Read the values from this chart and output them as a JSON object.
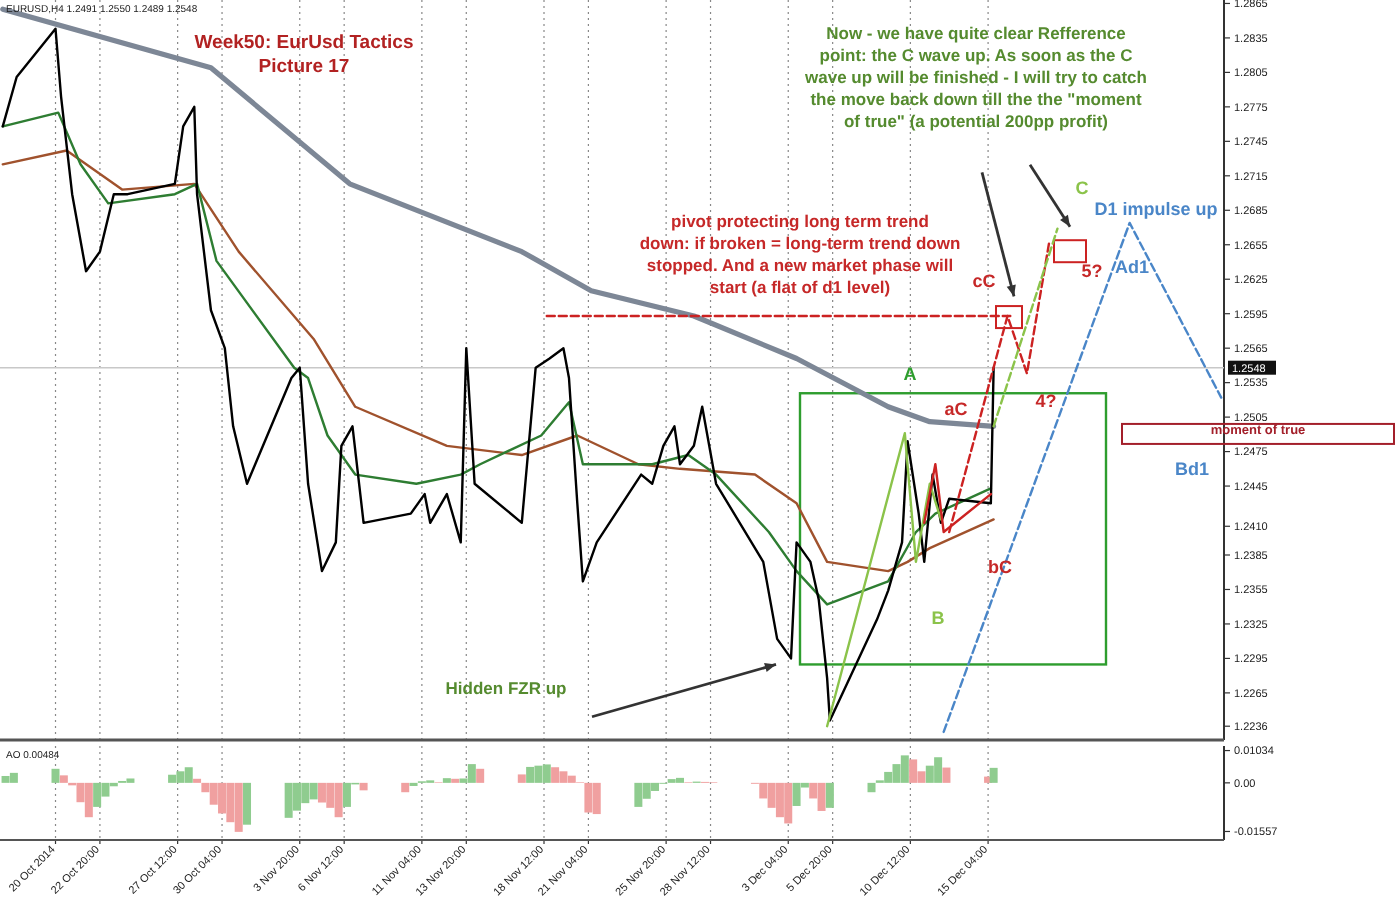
{
  "chart_data": [
    {
      "type": "line",
      "title": "Week50: EurUsd Tactics\nPicture 17",
      "subtitle": "EURUSD,H4  1.2491 1.2550 1.2489 1.2548",
      "xlim": [
        "2014-10-16T20:00",
        "2014-12-29T08:00"
      ],
      "ylim": [
        1.2224,
        1.2868
      ],
      "xticks": [
        {
          "value": "2014-10-20T04:00",
          "label": null
        },
        {
          "value": "2014-10-22T20:00",
          "label": null
        },
        {
          "value": "2014-10-27T12:00",
          "label": null
        },
        {
          "value": "2014-10-30T04:00",
          "label": null
        },
        {
          "value": "2014-11-03T20:00",
          "label": null
        },
        {
          "value": "2014-11-06T12:00",
          "label": null
        },
        {
          "value": "2014-11-11T04:00",
          "label": null
        },
        {
          "value": "2014-11-13T20:00",
          "label": null
        },
        {
          "value": "2014-11-18T12:00",
          "label": null
        },
        {
          "value": "2014-11-21T04:00",
          "label": null
        },
        {
          "value": "2014-11-25T20:00",
          "label": null
        },
        {
          "value": "2014-11-28T12:00",
          "label": null
        },
        {
          "value": "2014-12-03T04:00",
          "label": null
        },
        {
          "value": "2014-12-05T20:00",
          "label": null
        },
        {
          "value": "2014-12-10T12:00",
          "label": null
        },
        {
          "value": "2014-12-15T04:00",
          "label": null
        }
      ],
      "yticks": [
        1.2865,
        1.2835,
        1.2805,
        1.2775,
        1.2745,
        1.2715,
        1.2685,
        1.2655,
        1.2625,
        1.2595,
        1.2565,
        1.2535,
        1.2505,
        1.2475,
        1.2445,
        {
          "value": 1.241,
          "label": "1.2410"
        },
        1.2385,
        1.2355,
        1.2325,
        1.2295,
        1.2265,
        1.2236
      ],
      "tick_labels": "y",
      "grid": "x",
      "series": [
        {
          "color": "#7d8796",
          "x": [
            "2014-10-17T00:00",
            "2014-10-29T12:00",
            "2014-11-06T20:00",
            "2014-11-17T04:00",
            "2014-11-21T08:00",
            "2014-11-27T12:00",
            "2014-12-03T16:00",
            "2014-12-09T04:00",
            "2014-12-11T16:00",
            "2014-12-15T12:00"
          ],
          "values": [
            1.286,
            1.2809,
            1.2708,
            1.2649,
            1.2615,
            1.2593,
            1.2556,
            1.2514,
            1.2501,
            1.2497
          ]
        },
        {
          "color": "#a0522d",
          "x": [
            "2014-10-17T00:00",
            "2014-10-20T20:00",
            "2014-10-24T04:00",
            "2014-10-28T12:00",
            "2014-10-31T04:00",
            "2014-11-04T16:00",
            "2014-11-07T04:00",
            "2014-11-12T16:00",
            "2014-11-17T04:00",
            "2014-11-20T12:00",
            "2014-11-24T04:00",
            "2014-11-26T16:00",
            "2014-12-01T04:00",
            "2014-12-03T16:00",
            "2014-12-05T12:00",
            "2014-12-09T04:00",
            "2014-12-10T08:00",
            "2014-12-11T16:00",
            "2014-12-15T12:00"
          ],
          "values": [
            1.2725,
            1.2737,
            1.2703,
            1.2708,
            1.2649,
            1.2573,
            1.2514,
            1.248,
            1.2472,
            1.2489,
            1.2464,
            1.246,
            1.2455,
            1.243,
            1.2379,
            1.2371,
            1.2379,
            1.2391,
            1.2416
          ]
        },
        {
          "color": "#2e7d32",
          "x": [
            "2014-10-17T00:00",
            "2014-10-20T08:00",
            "2014-10-21T16:00",
            "2014-10-23T08:00",
            "2014-10-27T08:00",
            "2014-10-28T16:00",
            "2014-10-29T20:00",
            "2014-11-03T12:00",
            "2014-11-04T08:00",
            "2014-11-05T12:00",
            "2014-11-07T04:00",
            "2014-11-10T20:00",
            "2014-11-13T12:00",
            "2014-11-14T16:00",
            "2014-11-18T08:00",
            "2014-11-20T00:00",
            "2014-11-20T20:00",
            "2014-11-25T00:00",
            "2014-11-27T04:00",
            "2014-11-28T20:00",
            "2014-12-02T00:00",
            "2014-12-03T16:00",
            "2014-12-05T12:00",
            "2014-12-09T04:00",
            "2014-12-10T20:00",
            "2014-12-12T00:00",
            "2014-12-15T08:00"
          ],
          "values": [
            1.2758,
            1.277,
            1.2725,
            1.2691,
            1.2699,
            1.2708,
            1.2641,
            1.2548,
            1.2539,
            1.2489,
            1.2455,
            1.2447,
            1.2455,
            1.2464,
            1.2489,
            1.2518,
            1.2464,
            1.2464,
            1.2472,
            1.2455,
            1.2405,
            1.2371,
            1.2342,
            1.2362,
            1.2405,
            1.2421,
            1.2443
          ]
        },
        {
          "color": "#000000",
          "x": [
            "2014-10-17T00:00",
            "2014-10-17T20:00",
            "2014-10-20T04:00",
            "2014-10-20T12:00",
            "2014-10-21T04:00",
            "2014-10-22T00:00",
            "2014-10-22T20:00",
            "2014-10-23T16:00",
            "2014-10-24T12:00",
            "2014-10-27T08:00",
            "2014-10-27T20:00",
            "2014-10-28T12:00",
            "2014-10-28T16:00",
            "2014-10-29T12:00",
            "2014-10-30T08:00",
            "2014-10-30T20:00",
            "2014-10-31T16:00",
            "2014-11-03T08:00",
            "2014-11-03T20:00",
            "2014-11-04T08:00",
            "2014-11-05T04:00",
            "2014-11-06T00:00",
            "2014-11-06T08:00",
            "2014-11-07T00:00",
            "2014-11-07T16:00",
            "2014-11-10T12:00",
            "2014-11-11T08:00",
            "2014-11-11T16:00",
            "2014-11-12T16:00",
            "2014-11-13T12:00",
            "2014-11-13T20:00",
            "2014-11-14T08:00",
            "2014-11-17T04:00",
            "2014-11-18T00:00",
            "2014-11-18T20:00",
            "2014-11-19T16:00",
            "2014-11-20T00:00",
            "2014-11-20T12:00",
            "2014-11-20T20:00",
            "2014-11-21T16:00",
            "2014-11-24T08:00",
            "2014-11-25T00:00",
            "2014-11-25T16:00",
            "2014-11-26T08:00",
            "2014-11-26T16:00",
            "2014-11-27T12:00",
            "2014-11-28T00:00",
            "2014-11-28T20:00",
            "2014-12-01T16:00",
            "2014-12-02T12:00",
            "2014-12-03T08:00",
            "2014-12-03T16:00",
            "2014-12-04T12:00",
            "2014-12-05T00:00",
            "2014-12-05T12:00",
            "2014-12-05T16:00",
            "2014-12-08T12:00",
            "2014-12-09T04:00",
            "2014-12-10T00:00",
            "2014-12-10T08:00",
            "2014-12-11T00:00",
            "2014-12-11T08:00",
            "2014-12-11T20:00",
            "2014-12-12T08:00",
            "2014-12-12T20:00",
            "2014-12-15T08:00",
            "2014-12-15T12:00"
          ],
          "values": [
            1.2758,
            1.2801,
            1.2843,
            1.2784,
            1.2699,
            1.2632,
            1.2649,
            1.2699,
            1.2699,
            1.2708,
            1.2758,
            1.2775,
            1.2699,
            1.2598,
            1.2565,
            1.2497,
            1.2447,
            1.2539,
            1.2548,
            1.2447,
            1.2371,
            1.2396,
            1.248,
            1.2497,
            1.2413,
            1.2421,
            1.2438,
            1.2413,
            1.2438,
            1.2396,
            1.2565,
            1.2447,
            1.2413,
            1.2548,
            1.2556,
            1.2565,
            1.2539,
            1.243,
            1.2362,
            1.2396,
            1.2455,
            1.2447,
            1.248,
            1.2497,
            1.2464,
            1.248,
            1.2514,
            1.2447,
            1.2379,
            1.2312,
            1.2295,
            1.2396,
            1.2379,
            1.2346,
            1.2278,
            1.2241,
            1.2329,
            1.2354,
            1.2396,
            1.2484,
            1.2421,
            1.2379,
            1.2455,
            1.2413,
            1.2434,
            1.243,
            1.2548
          ]
        },
        {
          "color": "#8bc34a",
          "line_style": "solid",
          "x": [
            "2014-12-05T12:00",
            "2014-12-10T04:00",
            "2014-12-10T20:00",
            "2014-12-11T16:00",
            "2014-12-12T08:00"
          ],
          "values": [
            1.2236,
            1.2491,
            1.2379,
            1.2447,
            1.2416
          ]
        },
        {
          "color": "#cc2222",
          "line_style": "solid",
          "x": [
            "2014-12-11T08:00",
            "2014-12-12T00:00",
            "2014-12-12T12:00",
            "2014-12-15T08:00"
          ],
          "values": [
            1.2413,
            1.2464,
            1.2405,
            1.2438
          ]
        },
        {
          "color": "#cc2222",
          "line_style": "dashed",
          "x": [
            "2014-11-18T16:00",
            "2014-12-16T12:00"
          ],
          "values": [
            1.2593,
            1.2593
          ]
        },
        {
          "color": "#cc2222",
          "line_style": "dashed",
          "x": [
            "2014-12-12T20:00",
            "2014-12-16T08:00",
            "2014-12-17T12:00",
            "2014-12-18T20:00"
          ],
          "values": [
            1.2405,
            1.2593,
            1.2543,
            1.2657
          ]
        },
        {
          "color": "#8bc34a",
          "line_style": "dashed",
          "x": [
            "2014-12-15T12:00",
            "2014-12-19T08:00"
          ],
          "values": [
            1.2497,
            1.2669
          ]
        },
        {
          "color": "#4a86c8",
          "line_style": "dashed",
          "x": [
            "2014-12-12T12:00",
            "2014-12-23T16:00",
            "2014-12-29T04:00"
          ],
          "values": [
            1.2231,
            1.2674,
            1.2522
          ]
        }
      ],
      "ref_lines": [
        {
          "axis": "y",
          "value": 1.2548,
          "label": "1.2548",
          "color": "#c8c8c8"
        }
      ],
      "annotations": [
        "pivot protecting long term trend\ndown: if broken = long-term trend down\nstopped. And a new market phase will\nstart (a flat of d1 level)",
        "Now - we have quite clear Refference\npoint: the C wave up. As soon as the C\nwave up will be finished - I will try to catch\nthe move back down till the the \"moment\nof true\" (a potential 200pp profit)",
        "Hidden FZR up",
        "moment of true",
        "A",
        "B",
        "C",
        "aC",
        "bC",
        "cC",
        "4?",
        "5?",
        "D1 impulse up",
        "Ad1",
        "Bd1"
      ]
    },
    {
      "type": "bar",
      "title": "AO 0.00484",
      "xlim": [
        "2014-10-16T20:00",
        "2014-12-29T08:00"
      ],
      "ylim": [
        -0.0183,
        0.0118
      ],
      "xticks": [
        {
          "value": "2014-10-20T04:00",
          "label": "20 Oct 2014"
        },
        {
          "value": "2014-10-22T20:00",
          "label": "22 Oct 20:00"
        },
        {
          "value": "2014-10-27T12:00",
          "label": "27 Oct 12:00"
        },
        {
          "value": "2014-10-30T04:00",
          "label": "30 Oct 04:00"
        },
        {
          "value": "2014-11-03T20:00",
          "label": "3 Nov 20:00"
        },
        {
          "value": "2014-11-06T12:00",
          "label": "6 Nov 12:00"
        },
        {
          "value": "2014-11-11T04:00",
          "label": "11 Nov 04:00"
        },
        {
          "value": "2014-11-13T20:00",
          "label": "13 Nov 20:00"
        },
        {
          "value": "2014-11-18T12:00",
          "label": "18 Nov 12:00"
        },
        {
          "value": "2014-11-21T04:00",
          "label": "21 Nov 04:00"
        },
        {
          "value": "2014-11-25T20:00",
          "label": "25 Nov 20:00"
        },
        {
          "value": "2014-11-28T12:00",
          "label": "28 Nov 12:00"
        },
        {
          "value": "2014-12-03T04:00",
          "label": "3 Dec 04:00"
        },
        {
          "value": "2014-12-05T20:00",
          "label": "5 Dec 20:00"
        },
        {
          "value": "2014-12-10T12:00",
          "label": "10 Dec 12:00"
        },
        {
          "value": "2014-12-15T04:00",
          "label": "15 Dec 04:00"
        }
      ],
      "yticks": [
        0.01034,
        {
          "value": 0,
          "label": "0.00"
        },
        -0.01557
      ],
      "grid": "x",
      "x": [
        "2014-10-17T04:00",
        "2014-10-17T16:00",
        "2014-10-20T04:00",
        "2014-10-20T16:00",
        "2014-10-21T04:00",
        "2014-10-21T16:00",
        "2014-10-22T04:00",
        "2014-10-22T16:00",
        "2014-10-23T04:00",
        "2014-10-23T16:00",
        "2014-10-24T04:00",
        "2014-10-24T16:00",
        "2014-10-27T04:00",
        "2014-10-27T16:00",
        "2014-10-28T04:00",
        "2014-10-28T16:00",
        "2014-10-29T04:00",
        "2014-10-29T16:00",
        "2014-10-30T04:00",
        "2014-10-30T16:00",
        "2014-10-31T04:00",
        "2014-10-31T16:00",
        "2014-11-03T04:00",
        "2014-11-03T16:00",
        "2014-11-04T04:00",
        "2014-11-04T16:00",
        "2014-11-05T04:00",
        "2014-11-05T16:00",
        "2014-11-06T04:00",
        "2014-11-06T16:00",
        "2014-11-07T04:00",
        "2014-11-07T16:00",
        "2014-11-10T04:00",
        "2014-11-10T16:00",
        "2014-11-11T04:00",
        "2014-11-11T16:00",
        "2014-11-12T04:00",
        "2014-11-12T16:00",
        "2014-11-13T04:00",
        "2014-11-13T16:00",
        "2014-11-14T04:00",
        "2014-11-14T16:00",
        "2014-11-17T04:00",
        "2014-11-17T16:00",
        "2014-11-18T04:00",
        "2014-11-18T16:00",
        "2014-11-19T04:00",
        "2014-11-19T16:00",
        "2014-11-20T04:00",
        "2014-11-20T16:00",
        "2014-11-21T04:00",
        "2014-11-21T16:00",
        "2014-11-24T04:00",
        "2014-11-24T16:00",
        "2014-11-25T04:00",
        "2014-11-25T16:00",
        "2014-11-26T04:00",
        "2014-11-26T16:00",
        "2014-11-27T04:00",
        "2014-11-27T16:00",
        "2014-11-28T04:00",
        "2014-11-28T16:00",
        "2014-12-01T04:00",
        "2014-12-01T16:00",
        "2014-12-02T04:00",
        "2014-12-02T16:00",
        "2014-12-03T04:00",
        "2014-12-03T16:00",
        "2014-12-04T04:00",
        "2014-12-04T16:00",
        "2014-12-05T04:00",
        "2014-12-05T16:00",
        "2014-12-08T04:00",
        "2014-12-08T16:00",
        "2014-12-09T04:00",
        "2014-12-09T16:00",
        "2014-12-10T04:00",
        "2014-12-10T16:00",
        "2014-12-11T04:00",
        "2014-12-11T16:00",
        "2014-12-12T04:00",
        "2014-12-12T16:00",
        "2014-12-15T04:00",
        "2014-12-15T12:00"
      ],
      "values": [
        0.0022,
        0.0032,
        0.0045,
        0.0024,
        -0.0008,
        -0.0062,
        -0.011,
        -0.0077,
        -0.0044,
        -0.0011,
        0.0006,
        0.0014,
        0.0026,
        0.0037,
        0.005,
        0.0013,
        -0.003,
        -0.007,
        -0.0098,
        -0.0126,
        -0.0157,
        -0.0134,
        -0.0112,
        -0.0089,
        -0.0065,
        -0.0053,
        -0.0063,
        -0.008,
        -0.011,
        -0.0077,
        -0.0005,
        -0.0024,
        -0.003,
        -0.001,
        0.0005,
        0.0008,
        0.0002,
        0.0015,
        0.0013,
        0.0014,
        0.006,
        0.0045,
        0.0027,
        0.0051,
        0.0055,
        0.0059,
        0.005,
        0.0037,
        0.0023,
        0.0002,
        -0.0095,
        -0.01,
        -0.0077,
        -0.0051,
        -0.0026,
        -0.0003,
        0.0012,
        0.0016,
        0.0002,
        0.0004,
        0.0003,
        0.0002,
        -0.0003,
        -0.005,
        -0.008,
        -0.011,
        -0.013,
        -0.0074,
        -0.0015,
        -0.005,
        -0.009,
        -0.008,
        -0.003,
        0.0008,
        0.0035,
        0.006,
        0.0088,
        0.0075,
        0.0037,
        0.0055,
        0.0082,
        0.0049,
        0.002,
        0.0048
      ],
      "colors": [
        "#8fcc8f",
        "#8fcc8f",
        "#8fcc8f",
        "#f0a0a0",
        "#f0a0a0",
        "#f0a0a0",
        "#f0a0a0",
        "#8fcc8f",
        "#8fcc8f",
        "#8fcc8f",
        "#8fcc8f",
        "#8fcc8f",
        "#8fcc8f",
        "#8fcc8f",
        "#8fcc8f",
        "#f0a0a0",
        "#f0a0a0",
        "#f0a0a0",
        "#f0a0a0",
        "#f0a0a0",
        "#f0a0a0",
        "#8fcc8f",
        "#8fcc8f",
        "#8fcc8f",
        "#8fcc8f",
        "#8fcc8f",
        "#f0a0a0",
        "#f0a0a0",
        "#f0a0a0",
        "#8fcc8f",
        "#8fcc8f",
        "#f0a0a0",
        "#f0a0a0",
        "#8fcc8f",
        "#8fcc8f",
        "#8fcc8f",
        "#f0a0a0",
        "#8fcc8f",
        "#f0a0a0",
        "#8fcc8f",
        "#8fcc8f",
        "#f0a0a0",
        "#f0a0a0",
        "#8fcc8f",
        "#8fcc8f",
        "#8fcc8f",
        "#f0a0a0",
        "#f0a0a0",
        "#f0a0a0",
        "#f0a0a0",
        "#f0a0a0",
        "#f0a0a0",
        "#8fcc8f",
        "#8fcc8f",
        "#8fcc8f",
        "#8fcc8f",
        "#8fcc8f",
        "#8fcc8f",
        "#f0a0a0",
        "#8fcc8f",
        "#f0a0a0",
        "#f0a0a0",
        "#f0a0a0",
        "#f0a0a0",
        "#f0a0a0",
        "#f0a0a0",
        "#f0a0a0",
        "#8fcc8f",
        "#8fcc8f",
        "#f0a0a0",
        "#f0a0a0",
        "#8fcc8f",
        "#8fcc8f",
        "#8fcc8f",
        "#8fcc8f",
        "#8fcc8f",
        "#8fcc8f",
        "#f0a0a0",
        "#f0a0a0",
        "#8fcc8f",
        "#8fcc8f",
        "#f0a0a0",
        "#f0a0a0",
        "#8fcc8f"
      ]
    }
  ]
}
